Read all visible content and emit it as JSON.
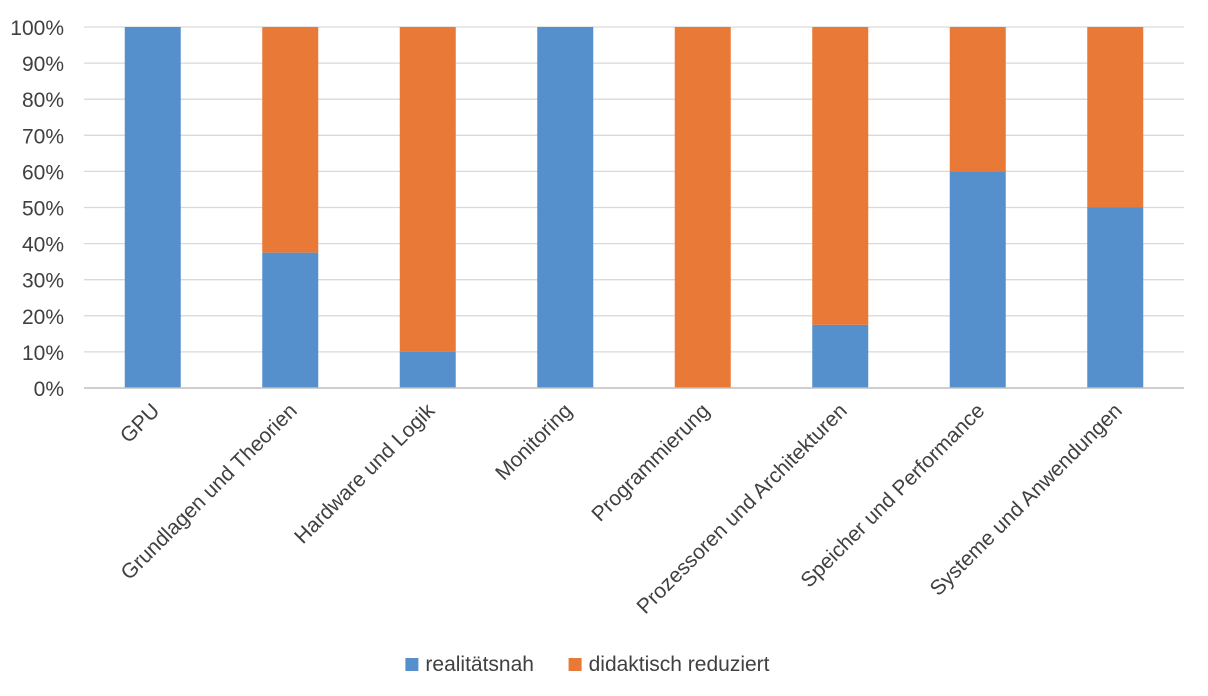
{
  "chart_data": {
    "type": "bar",
    "stacked": true,
    "percent": true,
    "categories": [
      "GPU",
      "Grundlagen und Theorien",
      "Hardware und Logik",
      "Monitoring",
      "Programmierung",
      "Prozessoren und Architekturen",
      "Speicher und Performance",
      "Systeme und Anwendungen"
    ],
    "series": [
      {
        "name": "realitätsnah",
        "color": "#5590CC",
        "values": [
          100,
          37.5,
          10,
          100,
          0,
          17.5,
          60,
          50
        ]
      },
      {
        "name": "didaktisch reduziert",
        "color": "#E97936",
        "values": [
          0,
          62.5,
          90,
          0,
          100,
          82.5,
          40,
          50
        ]
      }
    ],
    "ylim": [
      0,
      100
    ],
    "yticks": [
      "0%",
      "10%",
      "20%",
      "30%",
      "40%",
      "50%",
      "60%",
      "70%",
      "80%",
      "90%",
      "100%"
    ],
    "grid": true,
    "legend": "bottom",
    "title": "",
    "xlabel": "",
    "ylabel": ""
  }
}
